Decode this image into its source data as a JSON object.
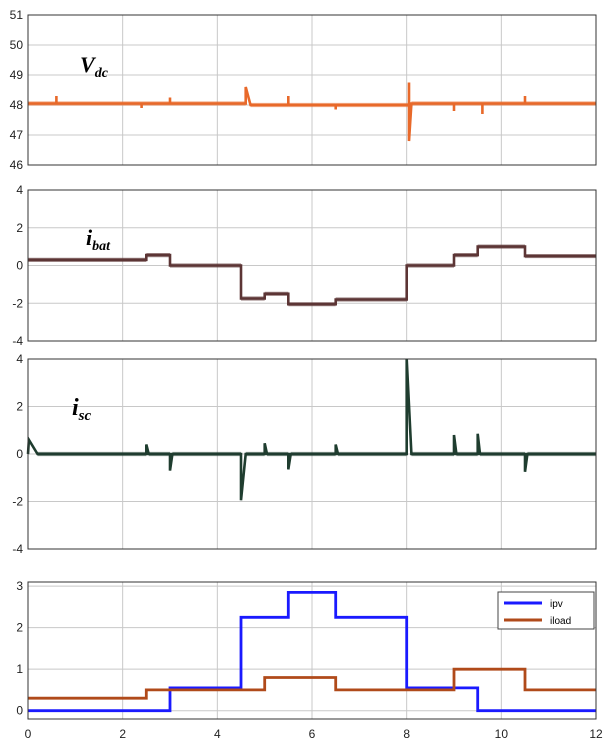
{
  "chart_data": [
    {
      "type": "line",
      "label_main": "V",
      "label_sub": "dc",
      "xlim": [
        0,
        12
      ],
      "ylim": [
        46,
        51
      ],
      "yticks": [
        "51",
        "50",
        "49",
        "48",
        "47",
        "46"
      ],
      "grid": true,
      "color": "#e8692a",
      "series": [
        {
          "x": [
            0,
            0.6,
            0.6,
            0.6,
            2.4,
            2.4,
            2.4,
            3.0,
            3.0,
            3.0,
            4.6,
            4.6,
            4.7,
            4.7,
            5.5,
            5.5,
            5.5,
            6.5,
            6.5,
            6.5,
            8.05,
            8.05,
            8.05,
            8.1,
            8.1,
            9.0,
            9.0,
            9.0,
            9.6,
            9.6,
            9.6,
            10.5,
            10.5,
            10.5,
            12
          ],
          "y": [
            48.05,
            48.05,
            48.3,
            48.05,
            48.05,
            47.9,
            48.05,
            48.05,
            48.25,
            48.05,
            48.05,
            48.6,
            48.0,
            48.0,
            48.0,
            48.3,
            48.0,
            48.0,
            47.85,
            48.0,
            48.0,
            48.75,
            46.8,
            48.05,
            48.05,
            48.05,
            47.8,
            48.05,
            48.05,
            47.7,
            48.05,
            48.05,
            48.3,
            48.05,
            48.05
          ]
        }
      ]
    },
    {
      "type": "line",
      "label_main": "i",
      "label_sub": "bat",
      "xlim": [
        0,
        12
      ],
      "ylim": [
        -4,
        4
      ],
      "yticks": [
        "4",
        "2",
        "0",
        "-2",
        "-4"
      ],
      "grid": true,
      "color": "#5c3535",
      "series": [
        {
          "x": [
            0,
            2.5,
            2.5,
            3.0,
            3.0,
            4.5,
            4.5,
            5.0,
            5.0,
            5.5,
            5.5,
            6.5,
            6.5,
            8.0,
            8.0,
            9.0,
            9.0,
            9.5,
            9.5,
            10.5,
            10.5,
            12
          ],
          "y": [
            0.3,
            0.3,
            0.55,
            0.55,
            0.0,
            0.0,
            -1.75,
            -1.75,
            -1.5,
            -1.5,
            -2.05,
            -2.05,
            -1.8,
            -1.8,
            0.0,
            0.0,
            0.55,
            0.55,
            1.0,
            1.0,
            0.5,
            0.5
          ]
        }
      ]
    },
    {
      "type": "line",
      "label_main": "i",
      "label_sub": "sc",
      "xlim": [
        0,
        12
      ],
      "ylim": [
        -4,
        4
      ],
      "yticks": [
        "4",
        "2",
        "0",
        "-2",
        "-4"
      ],
      "grid": true,
      "color": "#1f3d2f",
      "series": [
        {
          "x": [
            0,
            0.02,
            0.2,
            2.5,
            2.5,
            2.55,
            3.0,
            3.0,
            3.05,
            4.5,
            4.5,
            4.6,
            5.0,
            5.0,
            5.05,
            5.5,
            5.5,
            5.55,
            6.5,
            6.5,
            6.55,
            8.0,
            8.0,
            8.1,
            9.0,
            9.0,
            9.05,
            9.5,
            9.5,
            9.55,
            10.5,
            10.5,
            10.55,
            12
          ],
          "y": [
            0.0,
            0.6,
            0.0,
            0.0,
            0.4,
            0.0,
            0.0,
            -0.7,
            0.0,
            0.0,
            -1.95,
            0.0,
            0.0,
            0.45,
            0.0,
            0.0,
            -0.65,
            0.0,
            0.0,
            0.4,
            0.0,
            0.0,
            4.0,
            0.0,
            0.0,
            0.8,
            0.0,
            0.0,
            0.85,
            0.0,
            0.0,
            -0.75,
            0.0,
            0.0
          ]
        }
      ]
    },
    {
      "type": "line",
      "xlim": [
        0,
        12
      ],
      "ylim": [
        -0.2,
        3.1
      ],
      "xticks": [
        "0",
        "2",
        "4",
        "6",
        "8",
        "10",
        "12"
      ],
      "yticks": [
        "3",
        "2",
        "1",
        "0"
      ],
      "grid": true,
      "legend": "top-right",
      "series": [
        {
          "name": "ipv",
          "color": "#1a1aff",
          "x": [
            0,
            3.0,
            3.0,
            4.5,
            4.5,
            5.5,
            5.5,
            6.5,
            6.5,
            8.0,
            8.0,
            9.5,
            9.5,
            12
          ],
          "y": [
            0.0,
            0.0,
            0.55,
            0.55,
            2.25,
            2.25,
            2.85,
            2.85,
            2.25,
            2.25,
            0.55,
            0.55,
            0.0,
            0.0
          ]
        },
        {
          "name": "iload",
          "color": "#b04a1a",
          "x": [
            0,
            2.5,
            2.5,
            5.0,
            5.0,
            6.5,
            6.5,
            9.0,
            9.0,
            10.5,
            10.5,
            12
          ],
          "y": [
            0.3,
            0.3,
            0.5,
            0.5,
            0.8,
            0.8,
            0.5,
            0.5,
            1.0,
            1.0,
            0.5,
            0.5
          ]
        }
      ]
    }
  ]
}
